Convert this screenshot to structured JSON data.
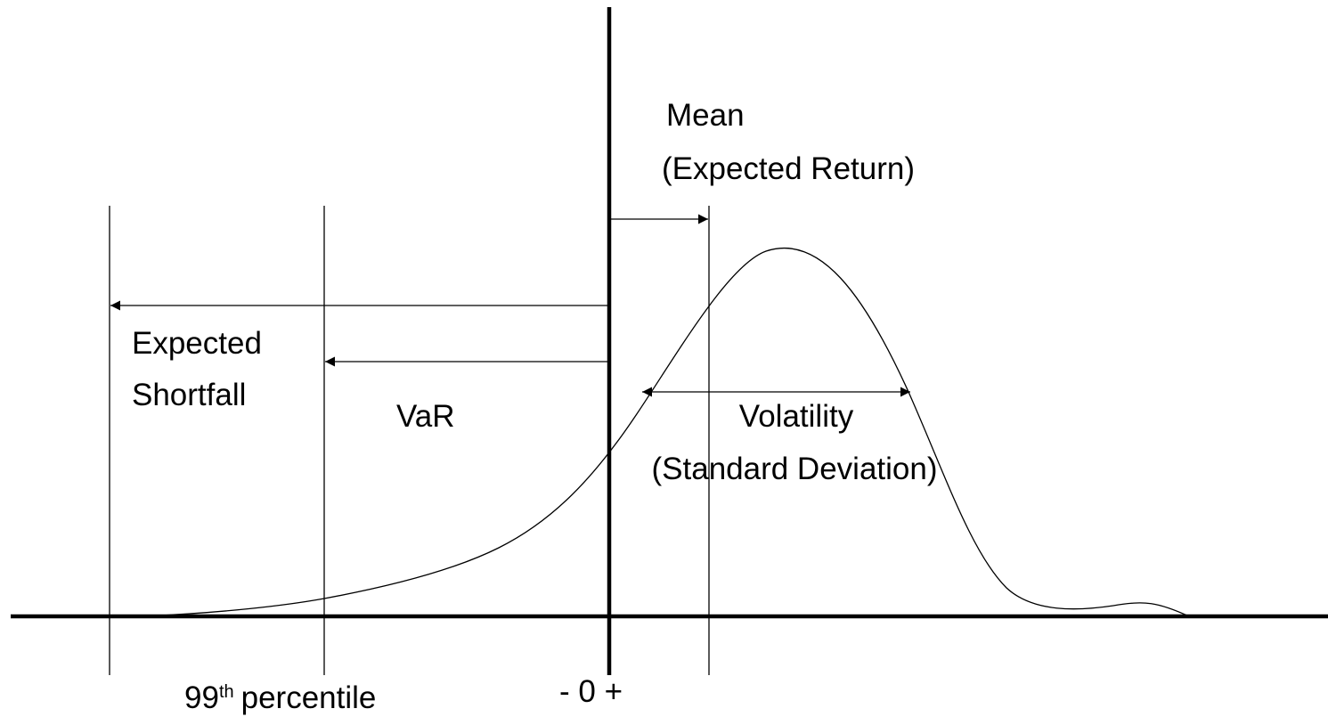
{
  "labels": {
    "mean": [
      "Mean",
      "(Expected Return)"
    ],
    "expected_shortfall": [
      "Expected",
      "Shortfall"
    ],
    "var": "VaR",
    "volatility": [
      "Volatility",
      "(Standard Deviation)"
    ],
    "percentile": {
      "number": "99",
      "suffix": "th",
      "text": "percentile"
    },
    "origin": "- 0 +"
  }
}
